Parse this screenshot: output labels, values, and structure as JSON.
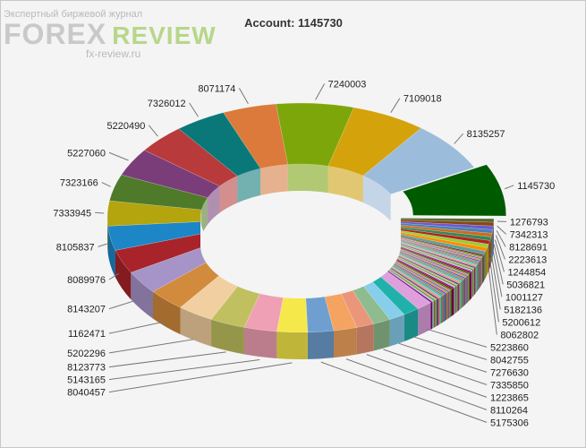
{
  "watermark": {
    "subtitle": "Экспертный биржевой журнал",
    "brand": "FOREX",
    "brand2": "REVIEW",
    "url": "fx-review.ru"
  },
  "chart_data": {
    "type": "pie",
    "title": "Account: 1145730",
    "variant": "3d-donut",
    "highlighted": "1145730",
    "labeled": [
      {
        "label": "1145730",
        "value": 7.5,
        "color": "#005a00"
      },
      {
        "label": "1276793",
        "value": 0.52,
        "color": "#556b2f"
      },
      {
        "label": "7342313",
        "value": 0.52,
        "color": "#8b4513"
      },
      {
        "label": "8128691",
        "value": 0.52,
        "color": "#6a5acd"
      },
      {
        "label": "2223613",
        "value": 0.52,
        "color": "#4682b4"
      },
      {
        "label": "1244854",
        "value": 0.52,
        "color": "#d2691e"
      },
      {
        "label": "5036821",
        "value": 0.52,
        "color": "#2e8b57"
      },
      {
        "label": "1001127",
        "value": 0.52,
        "color": "#b22222"
      },
      {
        "label": "5182136",
        "value": 0.52,
        "color": "#9acd32"
      },
      {
        "label": "5200612",
        "value": 0.52,
        "color": "#ff8c00"
      },
      {
        "label": "8062802",
        "value": 0.52,
        "color": "#5f9ea0"
      },
      {
        "label": "5223860",
        "value": 1.4,
        "color": "#dda0dd"
      },
      {
        "label": "8042755",
        "value": 1.4,
        "color": "#20b2aa"
      },
      {
        "label": "7276630",
        "value": 1.4,
        "color": "#87ceeb"
      },
      {
        "label": "7335850",
        "value": 1.5,
        "color": "#8fbc8f"
      },
      {
        "label": "1223865",
        "value": 1.5,
        "color": "#e9967a"
      },
      {
        "label": "8110264",
        "value": 2.0,
        "color": "#f4a460"
      },
      {
        "label": "5175306",
        "value": 2.2,
        "color": "#6f9fd0"
      },
      {
        "label": "8040457",
        "value": 2.6,
        "color": "#f5e84a"
      },
      {
        "label": "5143165",
        "value": 2.8,
        "color": "#f0a0b4"
      },
      {
        "label": "8123773",
        "value": 3.0,
        "color": "#c0c060"
      },
      {
        "label": "5202296",
        "value": 3.1,
        "color": "#f2cfa0"
      },
      {
        "label": "1162471",
        "value": 3.2,
        "color": "#d28a3c"
      },
      {
        "label": "8143207",
        "value": 3.3,
        "color": "#a694c8"
      },
      {
        "label": "8089976",
        "value": 3.4,
        "color": "#a8232a"
      },
      {
        "label": "8105837",
        "value": 3.5,
        "color": "#1c86c6"
      },
      {
        "label": "7333945",
        "value": 3.6,
        "color": "#b4a40e"
      },
      {
        "label": "7323166",
        "value": 3.8,
        "color": "#4e7a2a"
      },
      {
        "label": "5227060",
        "value": 4.0,
        "color": "#7a3d7a"
      },
      {
        "label": "5220490",
        "value": 4.2,
        "color": "#b83a3a"
      },
      {
        "label": "7326012",
        "value": 4.4,
        "color": "#0a7878"
      },
      {
        "label": "8071174",
        "value": 4.6,
        "color": "#db7a3a"
      },
      {
        "label": "7240003",
        "value": 6.6,
        "color": "#7ca60a"
      },
      {
        "label": "7109018",
        "value": 6.4,
        "color": "#d4a20a"
      },
      {
        "label": "8135257",
        "value": 7.2,
        "color": "#9cbcdc"
      }
    ],
    "small_slices": {
      "count": 48,
      "value_each": 0.17,
      "palette": [
        "#8b0000",
        "#228b22",
        "#ff7f50",
        "#4169e1",
        "#daa520",
        "#9932cc",
        "#3cb371",
        "#cd5c5c",
        "#00ced1",
        "#bdb76b",
        "#ff69b4",
        "#2f4f4f",
        "#d2b48c",
        "#6b8e23",
        "#b0c4de",
        "#800080"
      ]
    }
  }
}
